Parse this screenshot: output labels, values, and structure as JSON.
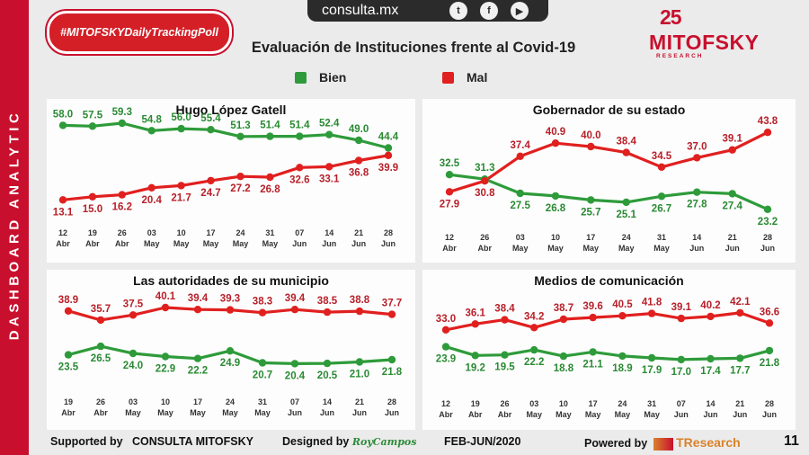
{
  "header": {
    "sidebar_text": "DASHBOARD ANALYTIC",
    "hashtag": "#MITOFSKYDailyTrackingPoll",
    "url": "consulta.mx",
    "social_icons": [
      "twitter-icon",
      "facebook-icon",
      "youtube-icon"
    ],
    "title": "Evaluación de Instituciones frente al Covid-19",
    "legend": [
      {
        "label": "Bien",
        "color": "#2e9b3a"
      },
      {
        "label": "Mal",
        "color": "#e0201f"
      }
    ],
    "logo": {
      "anniversary": "25",
      "name": "MITOFSKY",
      "tagline": "RESEARCH"
    }
  },
  "colors": {
    "bien": "#2e9b3a",
    "bien_text": "#2a8a33",
    "mal": "#e0201f",
    "mal_text": "#b8202a"
  },
  "chart_data": [
    {
      "type": "line",
      "title": "Hugo López Gatell",
      "categories": [
        [
          "12",
          "Abr"
        ],
        [
          "19",
          "Abr"
        ],
        [
          "26",
          "Abr"
        ],
        [
          "03",
          "May"
        ],
        [
          "10",
          "May"
        ],
        [
          "17",
          "May"
        ],
        [
          "24",
          "May"
        ],
        [
          "31",
          "May"
        ],
        [
          "07",
          "Jun"
        ],
        [
          "14",
          "Jun"
        ],
        [
          "21",
          "Jun"
        ],
        [
          "28",
          "Jun"
        ]
      ],
      "series": [
        {
          "name": "Bien",
          "values": [
            58.0,
            57.5,
            59.3,
            54.8,
            56.0,
            55.4,
            51.3,
            51.4,
            51.4,
            52.4,
            49.0,
            44.4
          ]
        },
        {
          "name": "Mal",
          "values": [
            13.1,
            15.0,
            16.2,
            20.4,
            21.7,
            24.7,
            27.2,
            26.8,
            32.6,
            33.1,
            36.8,
            39.9
          ]
        }
      ]
    },
    {
      "type": "line",
      "title": "Gobernador de su estado",
      "categories": [
        [
          "12",
          "Abr"
        ],
        [
          "26",
          "Abr"
        ],
        [
          "03",
          "May"
        ],
        [
          "10",
          "May"
        ],
        [
          "17",
          "May"
        ],
        [
          "24",
          "May"
        ],
        [
          "31",
          "May"
        ],
        [
          "14",
          "Jun"
        ],
        [
          "21",
          "Jun"
        ],
        [
          "28",
          "Jun"
        ]
      ],
      "series": [
        {
          "name": "Bien",
          "values": [
            32.5,
            31.3,
            27.5,
            26.8,
            25.7,
            25.1,
            26.7,
            27.8,
            27.4,
            23.2
          ]
        },
        {
          "name": "Mal",
          "values": [
            27.9,
            30.8,
            37.4,
            40.9,
            40.0,
            38.4,
            34.5,
            37.0,
            39.1,
            43.8
          ]
        }
      ]
    },
    {
      "type": "line",
      "title": "Las autoridades de su municipio",
      "categories": [
        [
          "19",
          "Abr"
        ],
        [
          "26",
          "Abr"
        ],
        [
          "03",
          "May"
        ],
        [
          "10",
          "May"
        ],
        [
          "17",
          "May"
        ],
        [
          "24",
          "May"
        ],
        [
          "31",
          "May"
        ],
        [
          "07",
          "Jun"
        ],
        [
          "14",
          "Jun"
        ],
        [
          "21",
          "Jun"
        ],
        [
          "28",
          "Jun"
        ]
      ],
      "series": [
        {
          "name": "Bien",
          "values": [
            23.5,
            26.5,
            24.0,
            22.9,
            22.2,
            24.9,
            20.7,
            20.4,
            20.5,
            21.0,
            21.8
          ]
        },
        {
          "name": "Mal",
          "values": [
            38.9,
            35.7,
            37.5,
            40.1,
            39.4,
            39.3,
            38.3,
            39.4,
            38.5,
            38.8,
            37.7
          ]
        }
      ]
    },
    {
      "type": "line",
      "title": "Medios de comunicación",
      "categories": [
        [
          "12",
          "Abr"
        ],
        [
          "19",
          "Abr"
        ],
        [
          "26",
          "Abr"
        ],
        [
          "03",
          "May"
        ],
        [
          "10",
          "May"
        ],
        [
          "17",
          "May"
        ],
        [
          "24",
          "May"
        ],
        [
          "31",
          "May"
        ],
        [
          "07",
          "Jun"
        ],
        [
          "14",
          "Jun"
        ],
        [
          "21",
          "Jun"
        ],
        [
          "28",
          "Jun"
        ]
      ],
      "series": [
        {
          "name": "Bien",
          "values": [
            23.9,
            19.2,
            19.5,
            22.2,
            18.8,
            21.1,
            18.9,
            17.9,
            17.0,
            17.4,
            17.7,
            21.8
          ]
        },
        {
          "name": "Mal",
          "values": [
            33.0,
            36.1,
            38.4,
            34.2,
            38.7,
            39.6,
            40.5,
            41.8,
            39.1,
            40.2,
            42.1,
            36.6
          ]
        }
      ]
    }
  ],
  "footer": {
    "supported_label": "Supported by",
    "supported_name": "CONSULTA  MITOFSKY",
    "designed_label": "Designed by",
    "designer": "RoyCampos",
    "period": "FEB-JUN/2020",
    "powered_label": "Powered by",
    "powered_name": "TResearch",
    "page_number": "11"
  }
}
